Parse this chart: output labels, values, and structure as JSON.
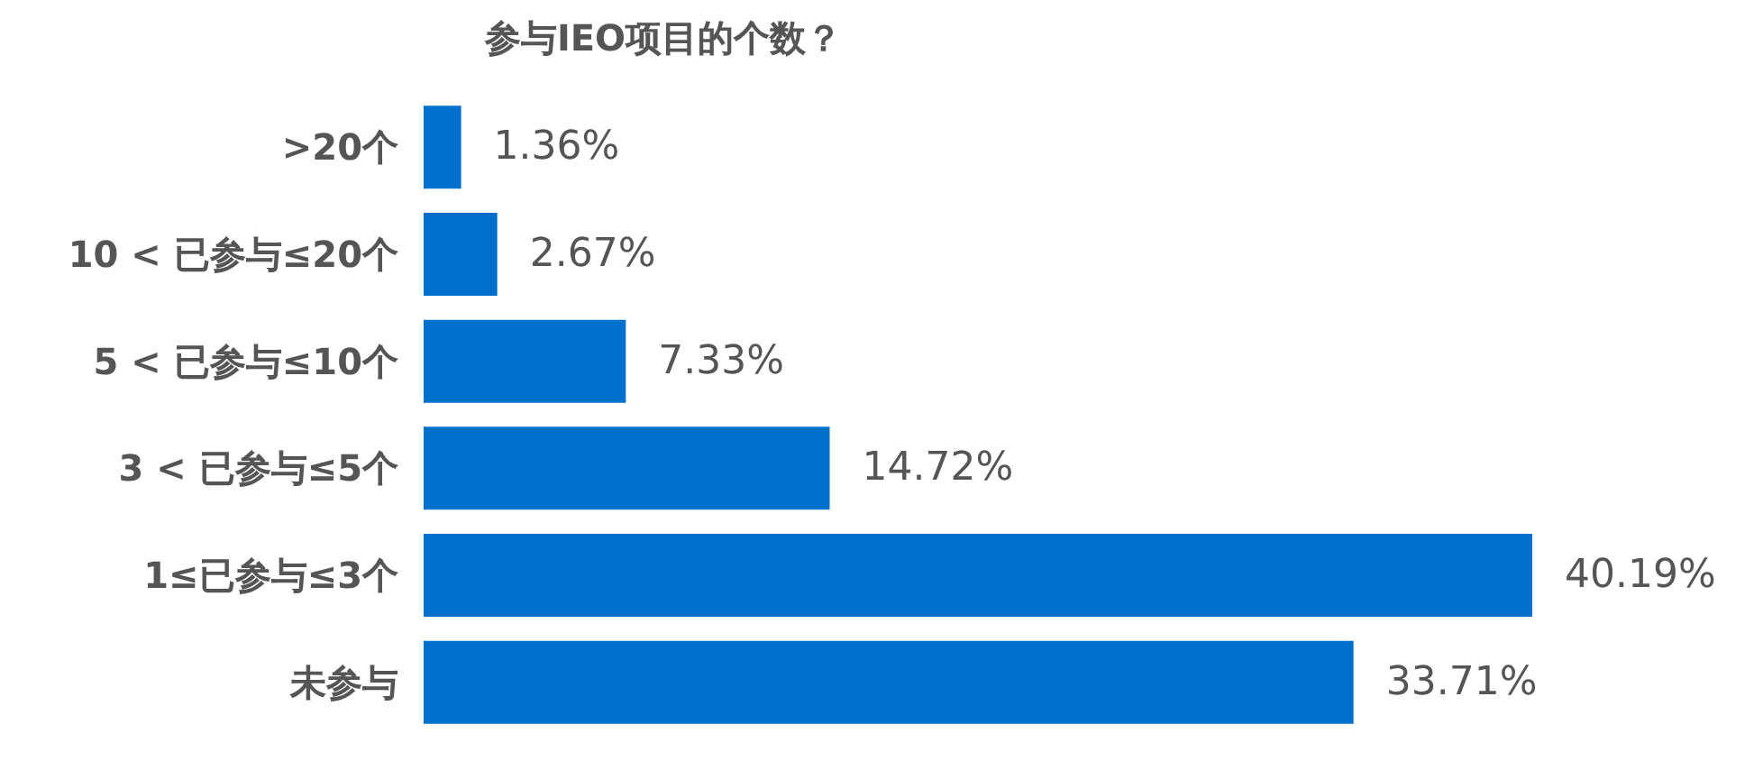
{
  "chart_data": {
    "type": "bar",
    "orientation": "horizontal",
    "title": "参与IEO项目的个数？",
    "categories": [
      ">20个",
      "10 < 已参与≤20个",
      "5 < 已参与≤10个",
      "3 < 已参与≤5个",
      "1≤已参与≤3个",
      "未参与"
    ],
    "values": [
      1.36,
      2.67,
      7.33,
      14.72,
      40.19,
      33.71
    ],
    "value_labels": [
      "1.36%",
      "2.67%",
      "7.33%",
      "14.72%",
      "40.19%",
      "33.71%"
    ],
    "color": "#0070cc"
  }
}
